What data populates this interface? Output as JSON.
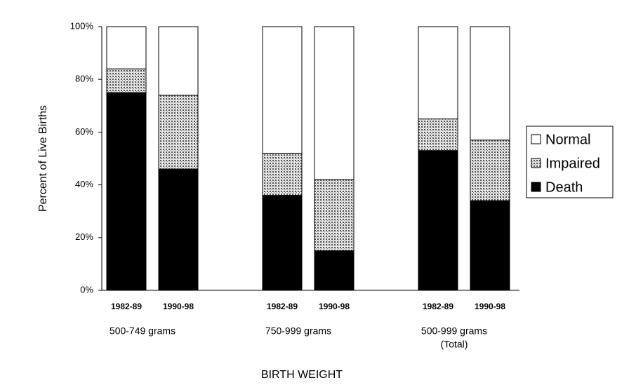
{
  "chart_data": {
    "type": "stacked-bar",
    "y_label": "Percent of Live Births",
    "x_label": "BIRTH WEIGHT",
    "categories": [
      "1982-89",
      "1990-98",
      null,
      "1982-89",
      "1990-98",
      null,
      "1982-89",
      "1990-98"
    ],
    "groups": [
      [
        "500-749 grams"
      ],
      [
        "750-999 grams"
      ],
      [
        "500-999 grams",
        "(Total)"
      ]
    ],
    "series": [
      {
        "name": "Death",
        "color": "#000000",
        "values": [
          75,
          46,
          null,
          36,
          15,
          null,
          53,
          34
        ]
      },
      {
        "name": "Impaired",
        "color": "#bdbdbd",
        "values": [
          9,
          28,
          null,
          16,
          27,
          null,
          12,
          23
        ]
      },
      {
        "name": "Normal",
        "color": "#ffffff",
        "values": [
          16,
          26,
          null,
          48,
          58,
          null,
          35,
          43
        ]
      }
    ],
    "ylim": [
      0,
      100
    ],
    "yticks": [
      {
        "value": 0,
        "label": "0%"
      },
      {
        "value": 20,
        "label": "20%"
      },
      {
        "value": 40,
        "label": "40%"
      },
      {
        "value": 60,
        "label": "60%"
      },
      {
        "value": 80,
        "label": "80%"
      },
      {
        "value": 100,
        "label": "100%"
      }
    ],
    "legend": "right"
  }
}
